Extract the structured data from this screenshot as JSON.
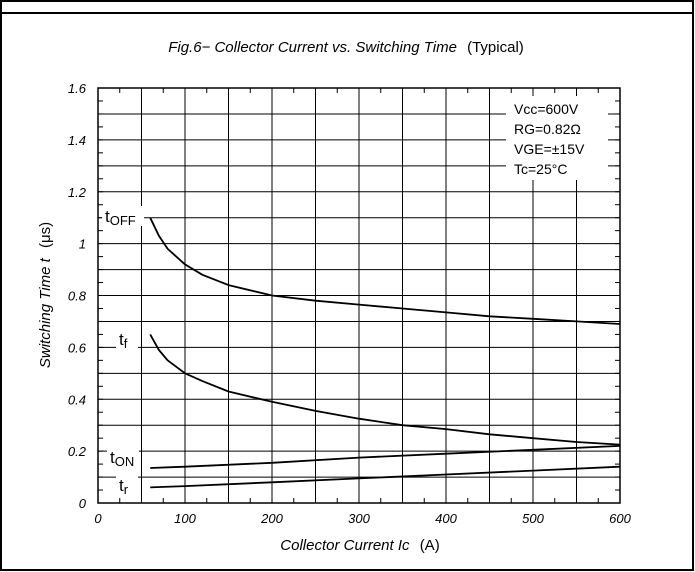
{
  "chart_data": {
    "type": "line",
    "title": "Fig.6− Collector Current vs. Switching Time",
    "title_suffix": "(Typical)",
    "xlabel": "Collector Current Ic",
    "xlabel_unit": "(A)",
    "ylabel": "Switching Time t",
    "ylabel_unit": "(μs)",
    "xlim": [
      0,
      600
    ],
    "ylim": [
      0,
      1.6
    ],
    "x_ticks": [
      "0",
      "100",
      "200",
      "300",
      "400",
      "500",
      "600"
    ],
    "y_ticks": [
      "0",
      "0.2",
      "0.4",
      "0.6",
      "0.8",
      "1",
      "1.2",
      "1.4",
      "1.6"
    ],
    "grid": true,
    "conditions": [
      "Vcc=600V",
      "RG=0.82Ω",
      "VGE=±15V",
      "Tc=25°C"
    ],
    "series": [
      {
        "name": "tOFF",
        "x": [
          60,
          70,
          80,
          100,
          120,
          150,
          200,
          250,
          300,
          350,
          400,
          450,
          500,
          550,
          600
        ],
        "values": [
          1.1,
          1.03,
          0.98,
          0.92,
          0.88,
          0.84,
          0.8,
          0.78,
          0.765,
          0.75,
          0.735,
          0.72,
          0.71,
          0.7,
          0.69
        ]
      },
      {
        "name": "tf",
        "x": [
          60,
          70,
          80,
          100,
          120,
          150,
          200,
          250,
          300,
          350,
          400,
          450,
          500,
          550,
          600
        ],
        "values": [
          0.65,
          0.59,
          0.55,
          0.5,
          0.47,
          0.43,
          0.39,
          0.355,
          0.325,
          0.3,
          0.285,
          0.265,
          0.25,
          0.235,
          0.225
        ]
      },
      {
        "name": "tON",
        "x": [
          60,
          100,
          200,
          300,
          400,
          500,
          600
        ],
        "values": [
          0.135,
          0.14,
          0.155,
          0.175,
          0.19,
          0.205,
          0.22
        ]
      },
      {
        "name": "tr",
        "x": [
          60,
          100,
          200,
          300,
          400,
          500,
          600
        ],
        "values": [
          0.06,
          0.065,
          0.08,
          0.095,
          0.11,
          0.125,
          0.14
        ]
      }
    ]
  }
}
